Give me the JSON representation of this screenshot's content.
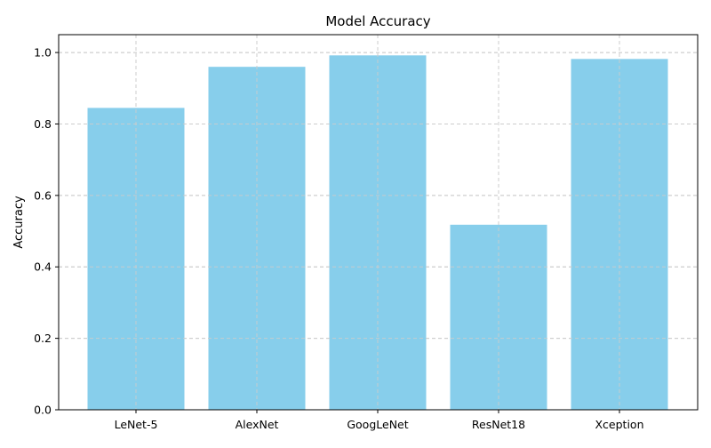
{
  "chart_data": {
    "type": "bar",
    "title": "Model Accuracy",
    "xlabel": "",
    "ylabel": "Accuracy",
    "categories": [
      "LeNet-5",
      "AlexNet",
      "GoogLeNet",
      "ResNet18",
      "Xception"
    ],
    "values": [
      0.845,
      0.96,
      0.992,
      0.518,
      0.982
    ],
    "ylim": [
      0,
      1.05
    ],
    "yticks": [
      0.0,
      0.2,
      0.4,
      0.6,
      0.8,
      1.0
    ],
    "ytick_labels": [
      "0.0",
      "0.2",
      "0.4",
      "0.6",
      "0.8",
      "1.0"
    ],
    "grid": true,
    "grid_style": "dashed",
    "bar_color": "#87ceeb"
  }
}
